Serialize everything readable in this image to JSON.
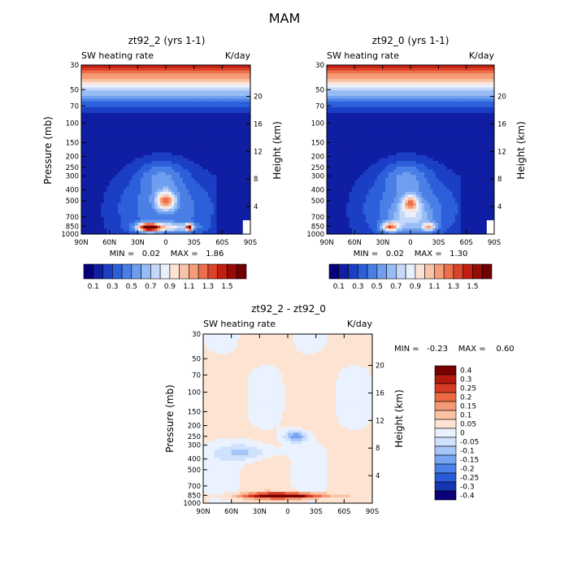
{
  "figure": {
    "title": "MAM"
  },
  "colors": {
    "scale": [
      "#08007a",
      "#0f1ea3",
      "#1b3ec4",
      "#2c5fda",
      "#4a7fe6",
      "#6f9eef",
      "#98bcf5",
      "#c4d8fa",
      "#e9f0fd",
      "#fbe4d6",
      "#f8c3a8",
      "#f49c77",
      "#ec704b",
      "#dc4329",
      "#c21f12",
      "#960c05",
      "#6f0000"
    ]
  },
  "chart_data": [
    {
      "type": "heatmap",
      "title": "zt92_2 (yrs 1-1)",
      "subtitle_left": "SW heating rate",
      "subtitle_right": "K/day",
      "ylabel": "Pressure (mb)",
      "y2label": "Height (km)",
      "yticks": [
        "30",
        "50",
        "70",
        "100",
        "150",
        "200",
        "250",
        "300",
        "400",
        "500",
        "700",
        "850",
        "1000"
      ],
      "ytick_values": [
        30,
        50,
        70,
        100,
        150,
        200,
        250,
        300,
        400,
        500,
        700,
        850,
        1000
      ],
      "y2ticks": [
        "20",
        "16",
        "12",
        "8",
        "4"
      ],
      "y2tick_values": [
        20,
        16,
        12,
        8,
        4
      ],
      "xticks": [
        "90N",
        "60N",
        "30N",
        "0",
        "30S",
        "60S",
        "90S"
      ],
      "xtick_values": [
        90,
        60,
        30,
        0,
        -30,
        -60,
        -90
      ],
      "ylim": [
        1000,
        30
      ],
      "xlim": [
        90,
        -90
      ],
      "stats": "MIN =   0.02    MAX =   1.86",
      "colorbar_labels": [
        "0.1",
        "0.3",
        "0.5",
        "0.7",
        "0.9",
        "1.1",
        "1.3",
        "1.5"
      ],
      "colorbar_levels": [
        0.1,
        0.2,
        0.3,
        0.4,
        0.5,
        0.6,
        0.7,
        0.8,
        0.9,
        1.0,
        1.1,
        1.2,
        1.3,
        1.4,
        1.5,
        1.6
      ],
      "features": [
        {
          "lat": -25,
          "p": 870,
          "sp": 3.2,
          "sz": 0.07,
          "amp": 1.3
        },
        {
          "lat": 18,
          "p": 870,
          "sp": 11,
          "sz": 0.08,
          "amp": 1.3
        },
        {
          "lat": 0,
          "p": 870,
          "sp": 28,
          "sz": 0.09,
          "amp": 0.5
        },
        {
          "lat": 0,
          "p": 500,
          "sp": 10,
          "sz": 0.18,
          "amp": 0.8
        },
        {
          "lat": 5,
          "p": 300,
          "sp": 25,
          "sz": 0.35,
          "amp": 0.25
        }
      ]
    },
    {
      "type": "heatmap",
      "title": "zt92_0 (yrs 1-1)",
      "subtitle_left": "SW heating rate",
      "subtitle_right": "K/day",
      "ylabel": "Pressure (mb)",
      "y2label": "Height (km)",
      "yticks": [
        "30",
        "50",
        "70",
        "100",
        "150",
        "200",
        "250",
        "300",
        "400",
        "500",
        "700",
        "850",
        "1000"
      ],
      "ytick_values": [
        30,
        50,
        70,
        100,
        150,
        200,
        250,
        300,
        400,
        500,
        700,
        850,
        1000
      ],
      "y2ticks": [
        "20",
        "16",
        "12",
        "8",
        "4"
      ],
      "y2tick_values": [
        20,
        16,
        12,
        8,
        4
      ],
      "xticks": [
        "90N",
        "60N",
        "30N",
        "0",
        "30S",
        "60S",
        "90S"
      ],
      "xtick_values": [
        90,
        60,
        30,
        0,
        -30,
        -60,
        -90
      ],
      "ylim": [
        1000,
        30
      ],
      "xlim": [
        90,
        -90
      ],
      "stats": "MIN =   0.02    MAX =   1.30",
      "colorbar_labels": [
        "0.1",
        "0.3",
        "0.5",
        "0.7",
        "0.9",
        "1.1",
        "1.3",
        "1.5"
      ],
      "colorbar_levels": [
        0.1,
        0.2,
        0.3,
        0.4,
        0.5,
        0.6,
        0.7,
        0.8,
        0.9,
        1.0,
        1.1,
        1.2,
        1.3,
        1.4,
        1.5,
        1.6
      ],
      "features": [
        {
          "lat": 22,
          "p": 860,
          "sp": 9,
          "sz": 0.09,
          "amp": 0.9
        },
        {
          "lat": -20,
          "p": 860,
          "sp": 7,
          "sz": 0.08,
          "amp": 0.7
        },
        {
          "lat": 0,
          "p": 520,
          "sp": 8,
          "sz": 0.15,
          "amp": 0.7
        },
        {
          "lat": 0,
          "p": 700,
          "sp": 20,
          "sz": 0.3,
          "amp": 0.35
        },
        {
          "lat": 5,
          "p": 300,
          "sp": 25,
          "sz": 0.35,
          "amp": 0.25
        }
      ]
    },
    {
      "type": "heatmap",
      "title": "zt92_2 - zt92_0",
      "subtitle_left": "SW heating rate",
      "subtitle_right": "K/day",
      "ylabel": "Pressure (mb)",
      "y2label": "Height (km)",
      "yticks": [
        "30",
        "50",
        "70",
        "100",
        "150",
        "200",
        "250",
        "300",
        "400",
        "500",
        "700",
        "850",
        "1000"
      ],
      "ytick_values": [
        30,
        50,
        70,
        100,
        150,
        200,
        250,
        300,
        400,
        500,
        700,
        850,
        1000
      ],
      "y2ticks": [
        "20",
        "16",
        "12",
        "8",
        "4"
      ],
      "y2tick_values": [
        20,
        16,
        12,
        8,
        4
      ],
      "xticks": [
        "90N",
        "60N",
        "30N",
        "0",
        "30S",
        "60S",
        "90S"
      ],
      "xtick_values": [
        90,
        60,
        30,
        0,
        -30,
        -60,
        -90
      ],
      "ylim": [
        1000,
        30
      ],
      "xlim": [
        90,
        -90
      ],
      "stats": "MIN =   -0.23    MAX =    0.60",
      "colorbar_labels": [
        "0.4",
        "0.3",
        "0.25",
        "0.2",
        "0.15",
        "0.1",
        "0.05",
        "0",
        "-0.05",
        "-0.1",
        "-0.15",
        "-0.2",
        "-0.25",
        "-0.3",
        "-0.4"
      ],
      "colorbar_levels": [
        0.4,
        0.3,
        0.25,
        0.2,
        0.15,
        0.1,
        0.05,
        0,
        -0.05,
        -0.1,
        -0.15,
        -0.2,
        -0.25,
        -0.3,
        -0.4
      ],
      "features": [
        {
          "lat": 5,
          "p": 860,
          "sp": 40,
          "sz": 0.06,
          "amp": 0.42
        },
        {
          "lat": -8,
          "p": 250,
          "sp": 12,
          "sz": 0.12,
          "amp": -0.2
        },
        {
          "lat": 45,
          "p": 350,
          "sp": 30,
          "sz": 0.18,
          "amp": -0.12
        }
      ]
    }
  ]
}
